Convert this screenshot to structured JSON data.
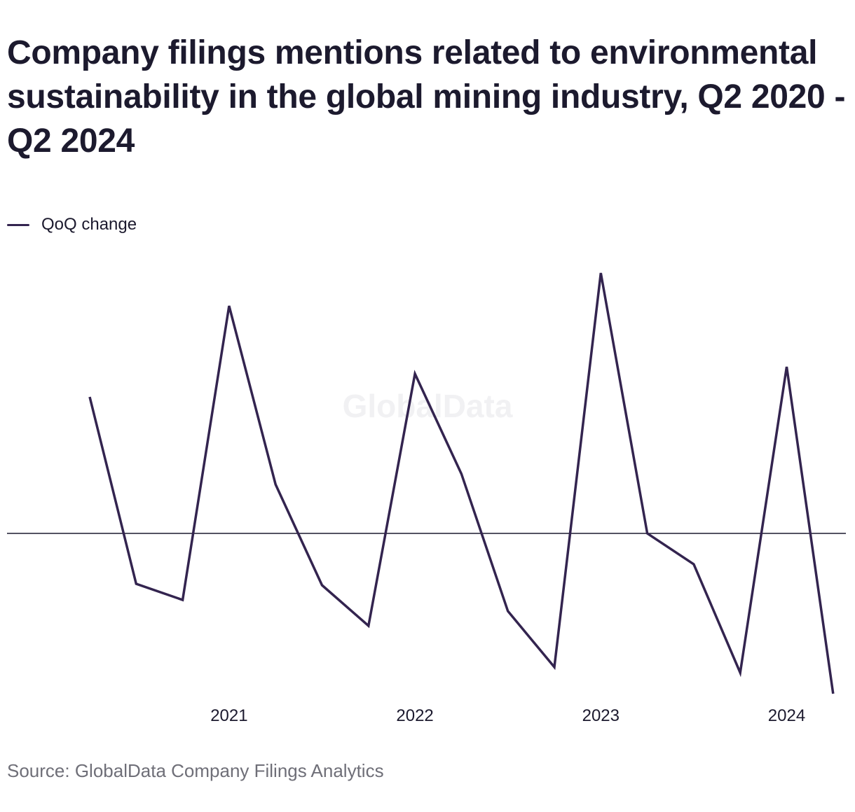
{
  "title": "Company filings mentions related to environmental sustainability in the global mining industry, Q2 2020 - Q2 2024",
  "legend": {
    "label": "QoQ change"
  },
  "watermark": "GlobalData",
  "source": "Source: GlobalData Company Filings Analytics",
  "colors": {
    "line": "#33244f",
    "baseline": "#1c1a2e",
    "text": "#1c1a2e",
    "source": "#6f6f78"
  },
  "chart_data": {
    "type": "line",
    "x": [
      "Q2 2020",
      "Q3 2020",
      "Q4 2020",
      "Q1 2021",
      "Q2 2021",
      "Q3 2021",
      "Q4 2021",
      "Q1 2022",
      "Q2 2022",
      "Q3 2022",
      "Q4 2022",
      "Q1 2023",
      "Q2 2023",
      "Q3 2023",
      "Q4 2023",
      "Q1 2024",
      "Q2 2024"
    ],
    "series": [
      {
        "name": "QoQ change",
        "values": [
          19.5,
          -7.2,
          -9.5,
          32.5,
          7.0,
          -7.4,
          -13.2,
          22.8,
          8.5,
          -11.1,
          -19.1,
          37.2,
          0.0,
          -4.4,
          -19.9,
          23.8,
          -22.9
        ]
      }
    ],
    "xtick_labels": [
      "2021",
      "2022",
      "2023",
      "2024"
    ],
    "xtick_positions": [
      "Q1 2021",
      "Q1 2022",
      "Q1 2023",
      "Q1 2024"
    ],
    "baseline": 0,
    "ylim": [
      -25,
      40
    ],
    "grid": false,
    "legend_position": "top-left"
  }
}
